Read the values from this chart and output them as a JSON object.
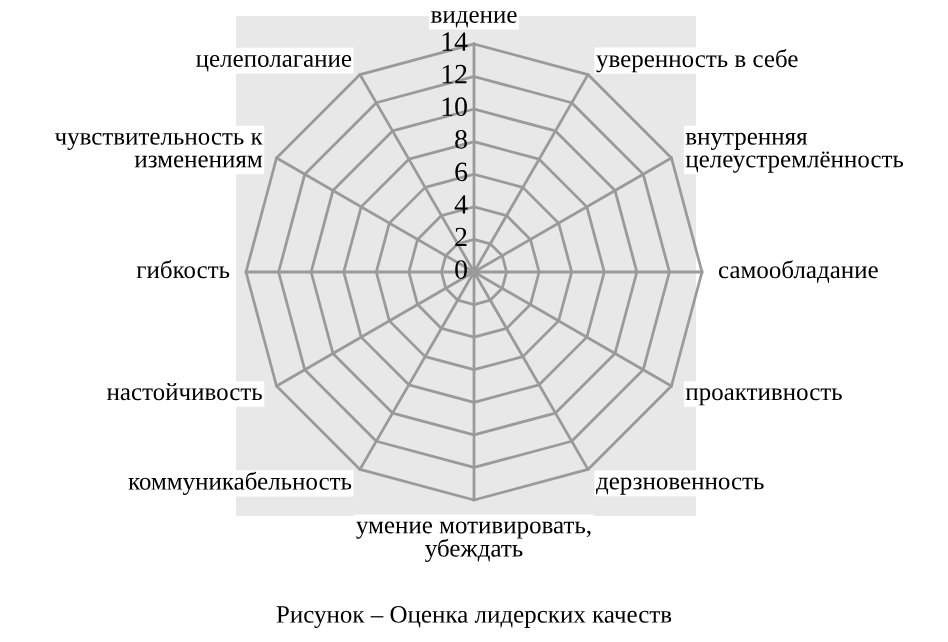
{
  "chart_data": {
    "type": "radar",
    "title": "Рисунок – Оценка лидерских качеств",
    "categories": [
      "видение",
      "уверенность в себе",
      "внутренняя\nцелеустремлённость",
      "самообладание",
      "проактивность",
      "дерзновенность",
      "умение мотивировать,\nубеждать",
      "коммуникабельность",
      "настойчивость",
      "гибкость",
      "чувствительность к\nизменениям",
      "целеполагание"
    ],
    "ylim": [
      0,
      14
    ],
    "yticks": [
      0,
      2,
      4,
      6,
      8,
      10,
      12,
      14
    ],
    "grid": true
  }
}
